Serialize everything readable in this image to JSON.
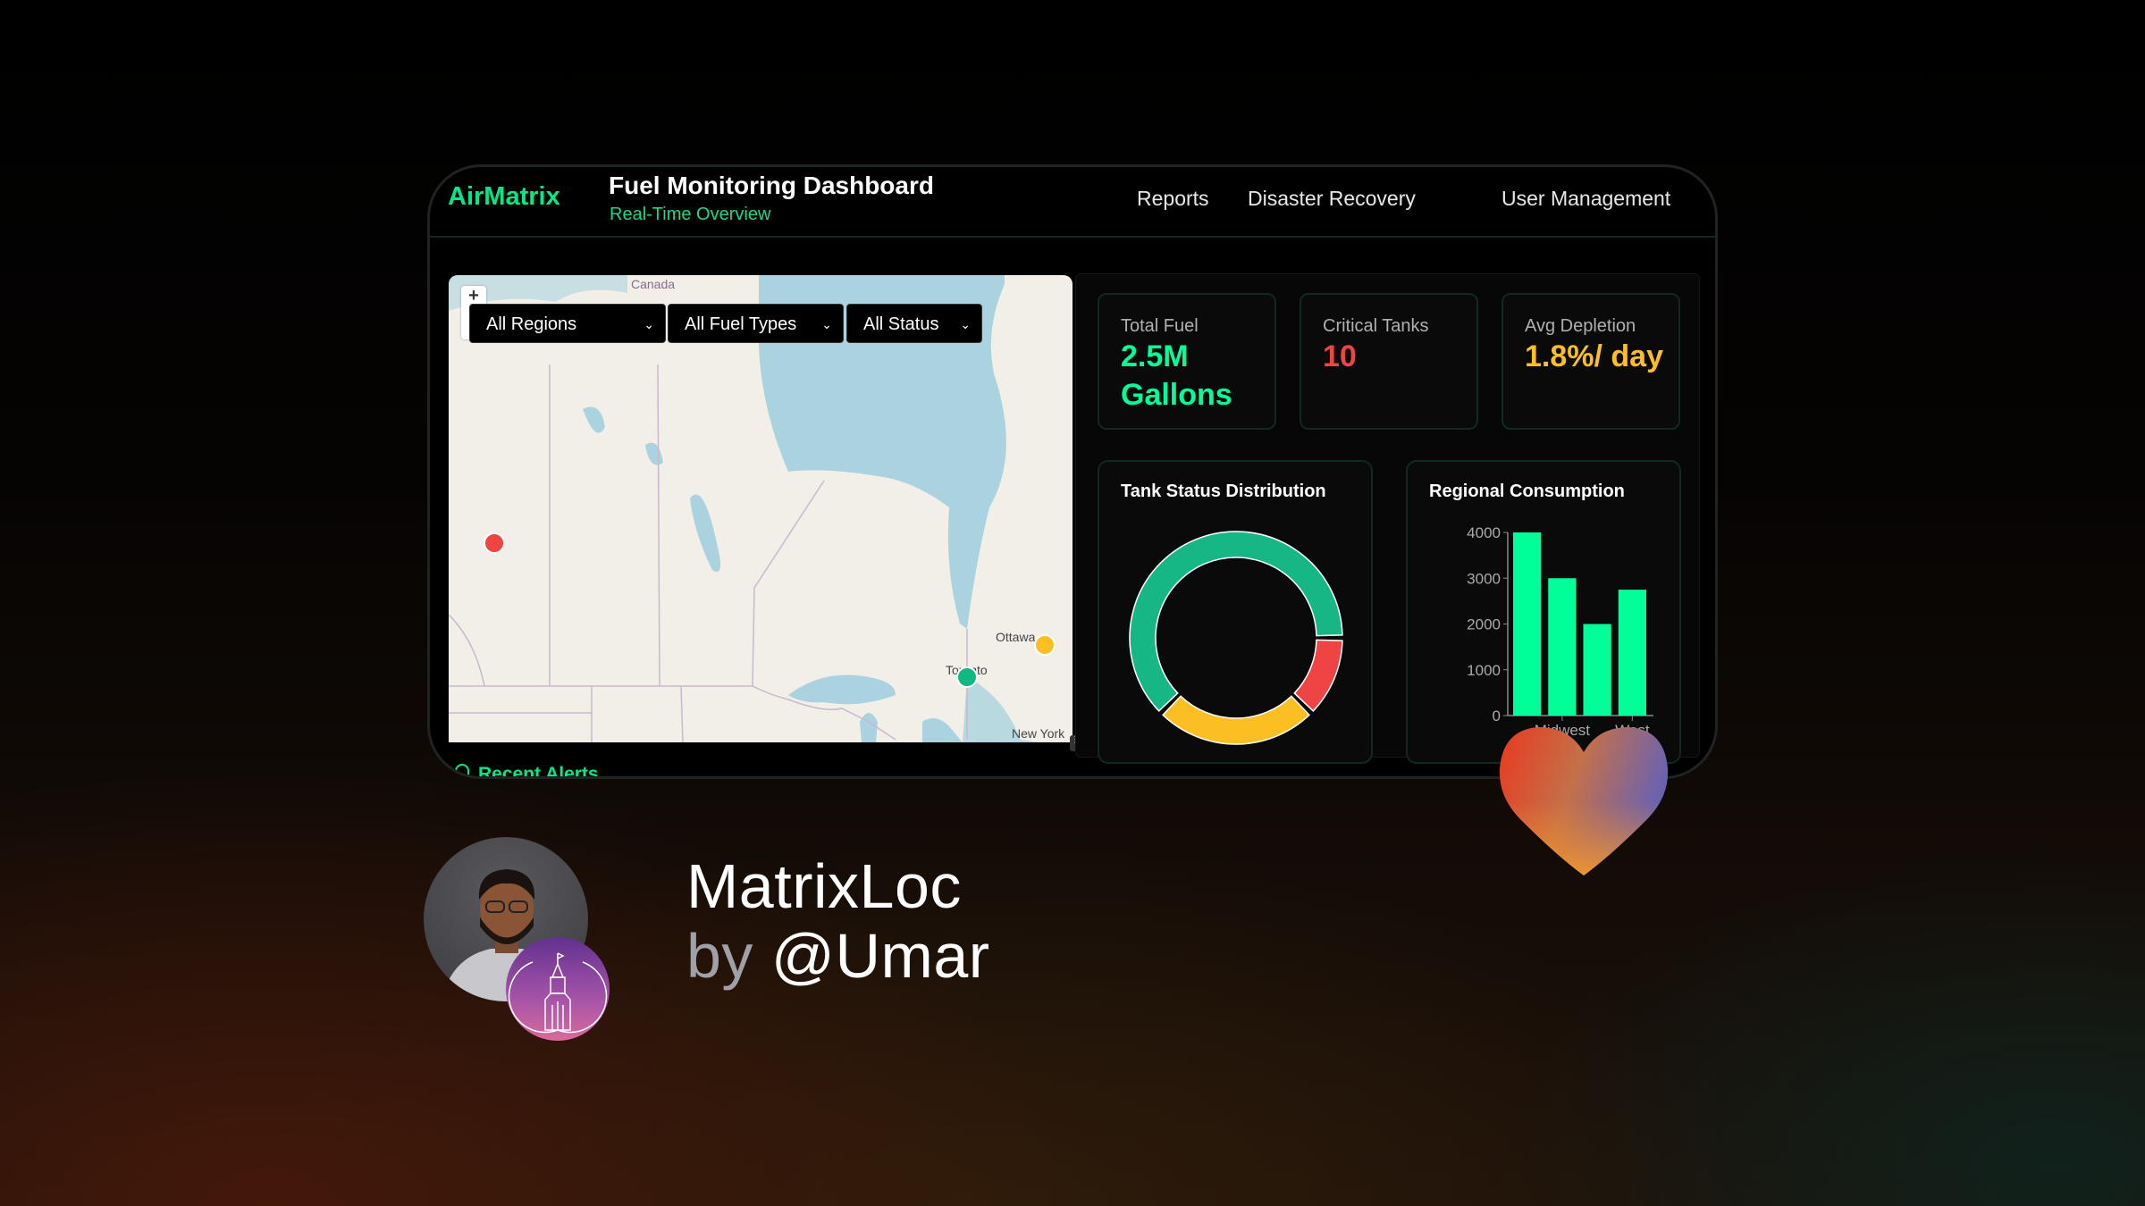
{
  "header": {
    "brand": "AirMatrix",
    "title": "Fuel Monitoring Dashboard",
    "subtitle": "Real-Time Overview",
    "nav": [
      "Reports",
      "Disaster Recovery",
      "User Management"
    ]
  },
  "map": {
    "zoom_in": "+",
    "filters": [
      {
        "selected": "All Regions",
        "icon": "chevron-down-icon"
      },
      {
        "selected": "All Fuel Types",
        "icon": "chevron-down-icon"
      },
      {
        "selected": "All Status",
        "icon": "chevron-down-icon"
      }
    ],
    "labels": {
      "country": "Canada",
      "city1": "Ottawa",
      "city2": "Toronto",
      "city3": "New York"
    },
    "markers": [
      {
        "status_color": "#ef4444"
      },
      {
        "status_color": "#10b981"
      },
      {
        "status_color": "#fbbf24"
      }
    ]
  },
  "stats": [
    {
      "label": "Total Fuel",
      "value": "2.5M Gallons",
      "color": "#00ff99"
    },
    {
      "label": "Critical Tanks",
      "value": "10",
      "color": "#ef4444"
    },
    {
      "label": "Avg Depletion",
      "value": "1.8%/ day",
      "color": "#fbbf24"
    }
  ],
  "alerts": {
    "title": "Recent Alerts",
    "icon": "bell-icon"
  },
  "chart_data": [
    {
      "type": "pie",
      "title": "Tank Status Distribution",
      "donut": true,
      "values": [
        62.5,
        25,
        12.5
      ],
      "colors": [
        "#16b785",
        "#fbbf24",
        "#ef4444"
      ]
    },
    {
      "type": "bar",
      "title": "Regional Consumption",
      "categories": [
        "",
        "Midwest",
        "",
        "West"
      ],
      "values": [
        4000,
        3000,
        2000,
        2750
      ],
      "ylim": [
        0,
        4000
      ],
      "yticks": [
        "0",
        "1000",
        "2000",
        "3000",
        "4000"
      ],
      "color": "#00ff99",
      "grid": false
    }
  ],
  "footer": {
    "app_name": "MatrixLoc",
    "by": "by",
    "author": "@Umar"
  }
}
